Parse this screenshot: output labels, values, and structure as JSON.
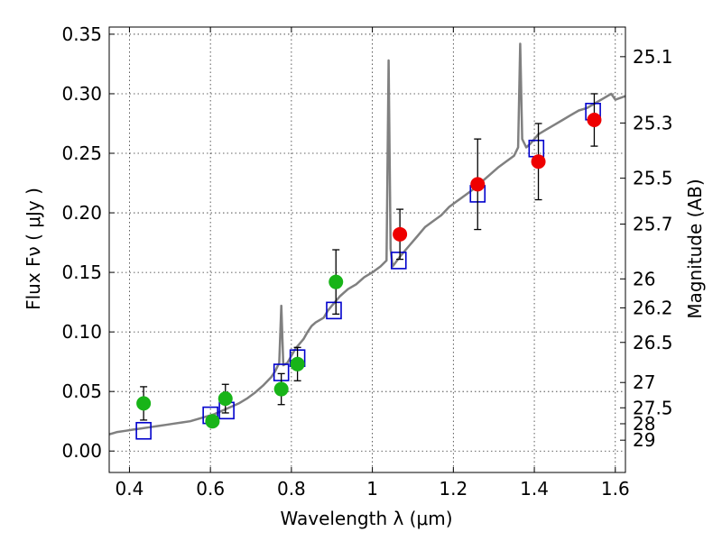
{
  "chart_data": {
    "type": "scatter",
    "title": "",
    "xlabel": "Wavelength  λ (μm)",
    "ylabel": "Flux  Fν  ( μJy )",
    "y2label": "Magnitude (AB)",
    "xlim": [
      0.35,
      1.625
    ],
    "ylim": [
      -0.018,
      0.356
    ],
    "grid": true,
    "x_ticks": [
      {
        "value": 0.4,
        "label": "0.4"
      },
      {
        "value": 0.6,
        "label": "0.6"
      },
      {
        "value": 0.8,
        "label": "0.8"
      },
      {
        "value": 1.0,
        "label": "1"
      },
      {
        "value": 1.2,
        "label": "1.2"
      },
      {
        "value": 1.4,
        "label": "1.4"
      },
      {
        "value": 1.6,
        "label": "1.6"
      }
    ],
    "y_ticks": [
      {
        "value": 0.0,
        "label": "0.00"
      },
      {
        "value": 0.05,
        "label": "0.05"
      },
      {
        "value": 0.1,
        "label": "0.10"
      },
      {
        "value": 0.15,
        "label": "0.15"
      },
      {
        "value": 0.2,
        "label": "0.20"
      },
      {
        "value": 0.25,
        "label": "0.25"
      },
      {
        "value": 0.3,
        "label": "0.30"
      },
      {
        "value": 0.35,
        "label": "0.35"
      }
    ],
    "y2_ticks": [
      {
        "value": 25.1,
        "label": "25.1"
      },
      {
        "value": 25.3,
        "label": "25.3"
      },
      {
        "value": 25.5,
        "label": "25.5"
      },
      {
        "value": 25.7,
        "label": "25.7"
      },
      {
        "value": 26.0,
        "label": "26"
      },
      {
        "value": 26.2,
        "label": "26.2"
      },
      {
        "value": 26.5,
        "label": "26.5"
      },
      {
        "value": 27.0,
        "label": "27"
      },
      {
        "value": 27.5,
        "label": "27.5"
      },
      {
        "value": 28.0,
        "label": "28"
      },
      {
        "value": 29.0,
        "label": "29"
      }
    ],
    "colors": {
      "model_line": "#808080",
      "model_points": "#0000cc",
      "optical_points": "#18b418",
      "ir_points": "#ee0000",
      "errorbar": "#000000"
    },
    "series": [
      {
        "type": "line",
        "color": "#808080",
        "x": [
          0.35,
          0.37,
          0.39,
          0.41,
          0.43,
          0.45,
          0.47,
          0.49,
          0.51,
          0.53,
          0.55,
          0.57,
          0.59,
          0.61,
          0.63,
          0.65,
          0.67,
          0.69,
          0.71,
          0.73,
          0.75,
          0.76,
          0.77,
          0.775,
          0.78,
          0.79,
          0.8,
          0.81,
          0.82,
          0.83,
          0.84,
          0.85,
          0.86,
          0.87,
          0.88,
          0.89,
          0.9,
          0.92,
          0.94,
          0.96,
          0.98,
          1.0,
          1.02,
          1.035,
          1.04,
          1.045,
          1.05,
          1.07,
          1.09,
          1.11,
          1.13,
          1.15,
          1.17,
          1.19,
          1.21,
          1.23,
          1.25,
          1.27,
          1.29,
          1.31,
          1.33,
          1.35,
          1.36,
          1.365,
          1.37,
          1.38,
          1.39,
          1.4,
          1.41,
          1.43,
          1.45,
          1.47,
          1.49,
          1.51,
          1.53,
          1.55,
          1.57,
          1.59,
          1.6,
          1.625
        ],
        "y": [
          0.014,
          0.016,
          0.017,
          0.018,
          0.019,
          0.02,
          0.021,
          0.022,
          0.023,
          0.024,
          0.025,
          0.027,
          0.029,
          0.031,
          0.034,
          0.037,
          0.04,
          0.044,
          0.049,
          0.055,
          0.062,
          0.067,
          0.074,
          0.122,
          0.072,
          0.074,
          0.08,
          0.086,
          0.09,
          0.094,
          0.1,
          0.105,
          0.108,
          0.11,
          0.112,
          0.118,
          0.122,
          0.13,
          0.136,
          0.14,
          0.146,
          0.15,
          0.155,
          0.16,
          0.328,
          0.17,
          0.155,
          0.164,
          0.172,
          0.18,
          0.188,
          0.193,
          0.198,
          0.205,
          0.21,
          0.215,
          0.22,
          0.226,
          0.232,
          0.238,
          0.243,
          0.248,
          0.255,
          0.342,
          0.262,
          0.255,
          0.258,
          0.262,
          0.266,
          0.27,
          0.274,
          0.278,
          0.282,
          0.286,
          0.288,
          0.292,
          0.296,
          0.3,
          0.295,
          0.298
        ]
      },
      {
        "type": "scatter",
        "marker": "square",
        "color": "#0000cc",
        "x": [
          0.435,
          0.6,
          0.64,
          0.775,
          0.815,
          0.905,
          1.065,
          1.26,
          1.405,
          1.545
        ],
        "y": [
          0.017,
          0.03,
          0.034,
          0.066,
          0.078,
          0.118,
          0.16,
          0.216,
          0.254,
          0.285
        ]
      },
      {
        "type": "scatter",
        "marker": "circle",
        "color": "#18b418",
        "x": [
          0.435,
          0.605,
          0.637,
          0.775,
          0.815,
          0.91
        ],
        "y": [
          0.04,
          0.025,
          0.044,
          0.052,
          0.073,
          0.142
        ],
        "yerr": [
          0.014,
          0.003,
          0.012,
          0.013,
          0.014,
          0.027
        ]
      },
      {
        "type": "scatter",
        "marker": "circle",
        "color": "#ee0000",
        "x": [
          1.068,
          1.26,
          1.41,
          1.548
        ],
        "y": [
          0.182,
          0.224,
          0.243,
          0.278
        ],
        "yerr": [
          0.021,
          0.038,
          0.032,
          0.022
        ]
      }
    ]
  }
}
